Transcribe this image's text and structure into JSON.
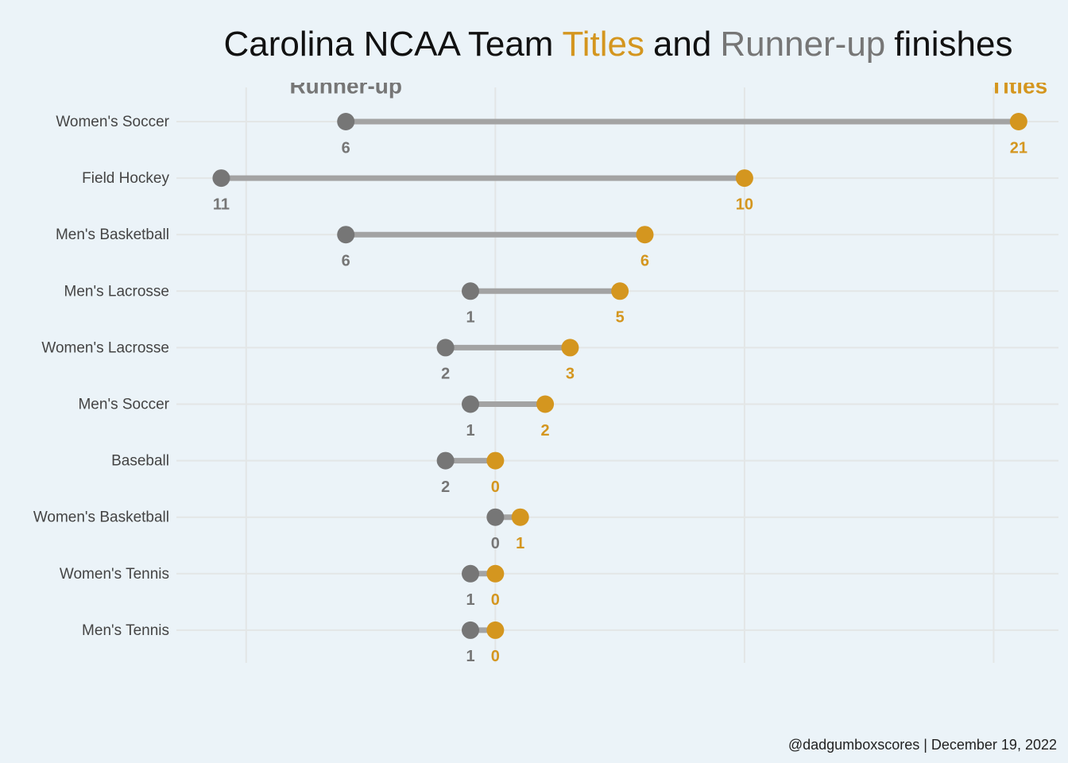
{
  "chart_data": {
    "type": "dumbbell",
    "title_parts": [
      "Carolina NCAA Team",
      "Titles",
      "and",
      "Runner-up",
      "finishes"
    ],
    "caption": "@dadgumboxscores | December 19, 2022",
    "categories": [
      "Women's Soccer",
      "Field Hockey",
      "Men's Basketball",
      "Men's Lacrosse",
      "Women's Lacrosse",
      "Men's Soccer",
      "Baseball",
      "Women's Basketball",
      "Women's Tennis",
      "Men's Tennis"
    ],
    "series": [
      {
        "name": "Titles",
        "color": "#d4961f",
        "values": [
          21,
          10,
          6,
          5,
          3,
          2,
          0,
          1,
          0,
          0
        ]
      },
      {
        "name": "Runner-up",
        "color": "#767676",
        "values": [
          6,
          11,
          6,
          1,
          2,
          1,
          2,
          0,
          1,
          1
        ]
      }
    ],
    "line_color": "#a3a3a3",
    "xlim": [
      -12.8,
      22.6
    ],
    "xgrid": [
      -10,
      0,
      10,
      20
    ],
    "grid": true
  }
}
